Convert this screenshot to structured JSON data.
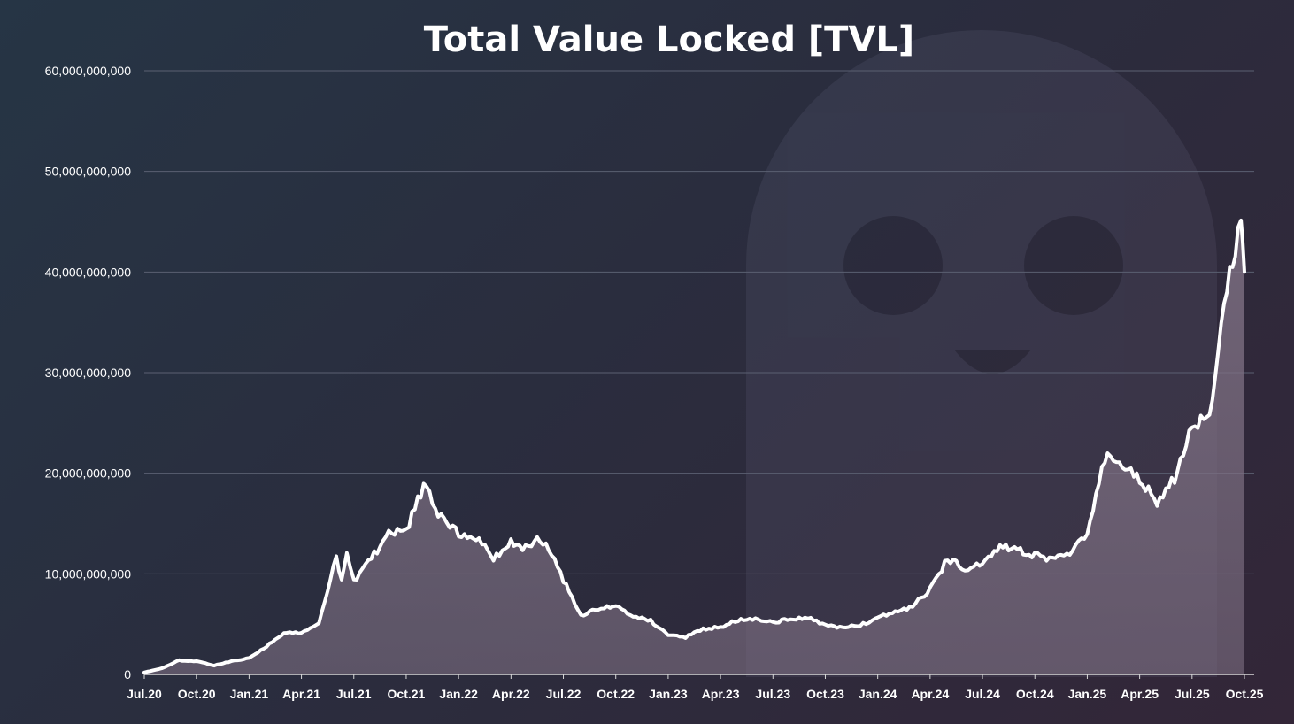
{
  "chart_data": {
    "type": "area",
    "title": "Total Value Locked [TVL]",
    "xlabel": "",
    "ylabel": "",
    "ylim": [
      0,
      60000000000
    ],
    "y_ticks": [
      0,
      10000000000,
      20000000000,
      30000000000,
      40000000000,
      50000000000,
      60000000000
    ],
    "y_tick_labels": [
      "0",
      "10,000,000,000",
      "20,000,000,000",
      "30,000,000,000",
      "40,000,000,000",
      "50,000,000,000",
      "60,000,000,000"
    ],
    "x_tick_labels": [
      "Jul.20",
      "Oct.20",
      "Jan.21",
      "Apr.21",
      "Jul.21",
      "Oct.21",
      "Jan.22",
      "Apr.22",
      "Jul.22",
      "Oct.22",
      "Jan.23",
      "Apr.23",
      "Jul.23",
      "Oct.23",
      "Jan.24",
      "Apr.24",
      "Jul.24",
      "Oct.24",
      "Jan.25",
      "Apr.25",
      "Jul.25",
      "Oct.25"
    ],
    "grid": true,
    "line_color": "#ffffff",
    "fill_color": "#7d6f82",
    "series": [
      {
        "name": "TVL",
        "x_month_index": [
          0,
          1,
          2,
          3,
          4,
          5,
          6,
          7,
          8,
          9,
          10,
          11,
          11.3,
          11.6,
          12,
          13,
          14,
          15,
          16,
          17,
          18,
          19,
          20,
          21,
          22,
          22.5,
          23,
          24,
          25,
          26,
          27,
          28,
          29,
          30,
          31,
          32,
          33,
          34,
          35,
          36,
          37,
          38,
          39,
          40,
          41,
          42,
          43,
          44,
          45,
          46,
          47,
          48,
          49,
          50,
          51,
          52,
          53,
          54,
          55,
          56,
          57,
          58,
          59,
          60,
          61,
          62,
          62.8,
          63
        ],
        "values": [
          200000000,
          600000000,
          1400000000,
          1300000000,
          900000000,
          1300000000,
          1600000000,
          2800000000,
          4100000000,
          4200000000,
          5100000000,
          11600000000,
          9200000000,
          12000000000,
          9300000000,
          11600000000,
          13900000000,
          14300000000,
          18800000000,
          15500000000,
          14100000000,
          13700000000,
          11500000000,
          13100000000,
          12500000000,
          13600000000,
          13000000000,
          9400000000,
          5900000000,
          6600000000,
          6800000000,
          5800000000,
          5300000000,
          4000000000,
          3700000000,
          4500000000,
          4700000000,
          5400000000,
          5600000000,
          5200000000,
          5500000000,
          5600000000,
          4900000000,
          4600000000,
          4900000000,
          5600000000,
          6200000000,
          6800000000,
          8500000000,
          11500000000,
          10600000000,
          10800000000,
          12700000000,
          12300000000,
          11900000000,
          11300000000,
          12200000000,
          13700000000,
          21500000000,
          20700000000,
          19400000000,
          17200000000,
          19500000000,
          24800000000,
          25900000000,
          38500000000,
          44500000000,
          40000000000
        ]
      }
    ]
  }
}
